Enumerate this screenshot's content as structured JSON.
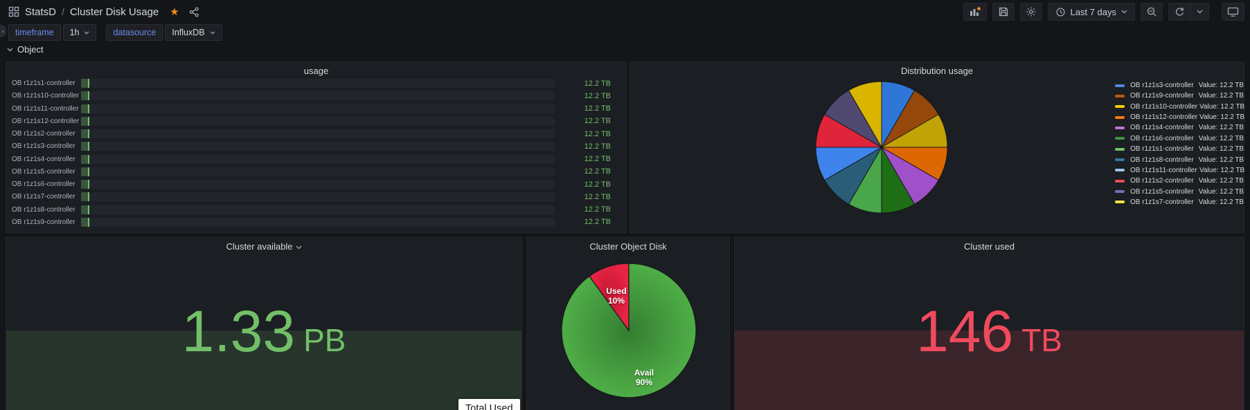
{
  "header": {
    "app": "StatsD",
    "separator": "/",
    "title": "Cluster Disk Usage",
    "toolbar": {
      "time_range": "Last 7 days"
    }
  },
  "variables": [
    {
      "label": "timeframe",
      "value": "1h"
    },
    {
      "label": "datasource",
      "value": "InfluxDB"
    }
  ],
  "row": {
    "title": "Object"
  },
  "panels": {
    "usage": {
      "title": "usage",
      "bar_color": "#73BF69",
      "rows": [
        {
          "name": "OB r1z1s1-controller",
          "value": "12.2 TB"
        },
        {
          "name": "OB r1z1s10-controller",
          "value": "12.2 TB"
        },
        {
          "name": "OB r1z1s11-controller",
          "value": "12.2 TB"
        },
        {
          "name": "OB r1z1s12-controller",
          "value": "12.2 TB"
        },
        {
          "name": "OB r1z1s2-controller",
          "value": "12.2 TB"
        },
        {
          "name": "OB r1z1s3-controller",
          "value": "12.2 TB"
        },
        {
          "name": "OB r1z1s4-controller",
          "value": "12.2 TB"
        },
        {
          "name": "OB r1z1s5-controller",
          "value": "12.2 TB"
        },
        {
          "name": "OB r1z1s6-controller",
          "value": "12.2 TB"
        },
        {
          "name": "OB r1z1s7-controller",
          "value": "12.2 TB"
        },
        {
          "name": "OB r1z1s8-controller",
          "value": "12.2 TB"
        },
        {
          "name": "OB r1z1s9-controller",
          "value": "12.2 TB"
        }
      ]
    },
    "distribution": {
      "title": "Distribution usage",
      "value_label": "Value:",
      "series": [
        {
          "name": "OB r1z1s3-controller",
          "value": "12.2 TB",
          "color": "#4E86E0",
          "pie_color": "#2E77D8"
        },
        {
          "name": "OB r1z1s9-controller",
          "value": "12.2 TB",
          "color": "#BE5A0E",
          "pie_color": "#95470C"
        },
        {
          "name": "OB r1z1s10-controller",
          "value": "12.2 TB",
          "color": "#F2CC0C",
          "pie_color": "#C2A306"
        },
        {
          "name": "OB r1z1s12-controller",
          "value": "12.2 TB",
          "color": "#FF780A",
          "pie_color": "#DD6700"
        },
        {
          "name": "OB r1z1s4-controller",
          "value": "12.2 TB",
          "color": "#B877D9",
          "pie_color": "#A050C8"
        },
        {
          "name": "OB r1z1s6-controller",
          "value": "12.2 TB",
          "color": "#3D9442",
          "pie_color": "#1E6E16"
        },
        {
          "name": "OB r1z1s1-controller",
          "value": "12.2 TB",
          "color": "#73BF69",
          "pie_color": "#4AA64A"
        },
        {
          "name": "OB r1z1s8-controller",
          "value": "12.2 TB",
          "color": "#34789E",
          "pie_color": "#2A5D78"
        },
        {
          "name": "OB r1z1s11-controller",
          "value": "12.2 TB",
          "color": "#9CC3EA",
          "pie_color": "#3F83EC"
        },
        {
          "name": "OB r1z1s2-controller",
          "value": "12.2 TB",
          "color": "#F2495C",
          "pie_color": "#E0243B"
        },
        {
          "name": "OB r1z1s5-controller",
          "value": "12.2 TB",
          "color": "#7D6BB5",
          "pie_color": "#4F4870"
        },
        {
          "name": "OB r1z1s7-controller",
          "value": "12.2 TB",
          "color": "#F7E14A",
          "pie_color": "#D9B500"
        }
      ]
    },
    "available": {
      "title": "Cluster available",
      "value": "1.33",
      "unit": "PB",
      "color": "#73BF69"
    },
    "object_disk": {
      "title": "Cluster Object Disk",
      "slices": [
        {
          "label": "Avail",
          "pct": "90%",
          "value": 90,
          "color": "#4FAE47",
          "color_center": "#357D32"
        },
        {
          "label": "Used",
          "pct": "10%",
          "value": 10,
          "color": "#E82443",
          "color_center": "#BF1733"
        }
      ]
    },
    "used": {
      "title": "Cluster used",
      "value": "146",
      "unit": "TB",
      "color": "#F04A5E"
    }
  },
  "tooltip": {
    "text": "Total Used"
  },
  "colors": {
    "page_bg": "#131519",
    "panel_bg": "#1B1E22",
    "green": "#73BF69",
    "red": "#F2495C",
    "variable_label_blue": "#6C8AE8",
    "star_orange": "#F08C1C",
    "add_panel_plus_orange": "#F68F2B"
  },
  "chart_data": [
    {
      "type": "bar",
      "title": "usage",
      "orientation": "horizontal",
      "categories": [
        "OB r1z1s1-controller",
        "OB r1z1s10-controller",
        "OB r1z1s11-controller",
        "OB r1z1s12-controller",
        "OB r1z1s2-controller",
        "OB r1z1s3-controller",
        "OB r1z1s4-controller",
        "OB r1z1s5-controller",
        "OB r1z1s6-controller",
        "OB r1z1s7-controller",
        "OB r1z1s8-controller",
        "OB r1z1s9-controller"
      ],
      "values": [
        12.2,
        12.2,
        12.2,
        12.2,
        12.2,
        12.2,
        12.2,
        12.2,
        12.2,
        12.2,
        12.2,
        12.2
      ],
      "unit": "TB"
    },
    {
      "type": "pie",
      "title": "Distribution usage",
      "legend_position": "right",
      "labels": [
        "OB r1z1s3-controller",
        "OB r1z1s9-controller",
        "OB r1z1s10-controller",
        "OB r1z1s12-controller",
        "OB r1z1s4-controller",
        "OB r1z1s6-controller",
        "OB r1z1s1-controller",
        "OB r1z1s8-controller",
        "OB r1z1s11-controller",
        "OB r1z1s2-controller",
        "OB r1z1s5-controller",
        "OB r1z1s7-controller"
      ],
      "values": [
        12.2,
        12.2,
        12.2,
        12.2,
        12.2,
        12.2,
        12.2,
        12.2,
        12.2,
        12.2,
        12.2,
        12.2
      ],
      "unit": "TB"
    },
    {
      "type": "singlestat",
      "title": "Cluster available",
      "value": 1.33,
      "unit": "PB"
    },
    {
      "type": "pie",
      "title": "Cluster Object Disk",
      "labels": [
        "Avail",
        "Used"
      ],
      "values": [
        90,
        10
      ],
      "unit": "%"
    },
    {
      "type": "singlestat",
      "title": "Cluster used",
      "value": 146,
      "unit": "TB"
    }
  ]
}
